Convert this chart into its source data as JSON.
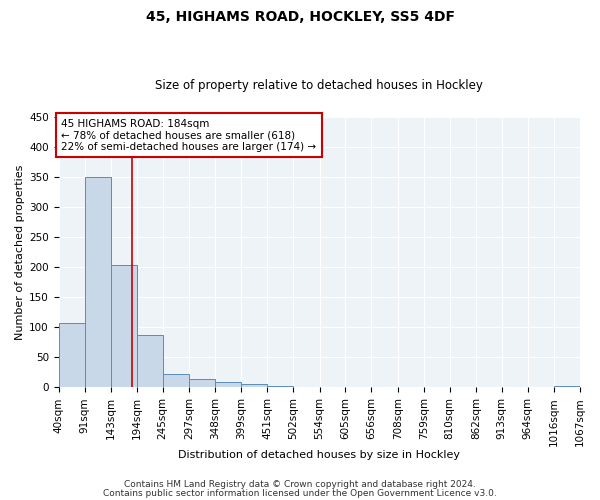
{
  "title": "45, HIGHAMS ROAD, HOCKLEY, SS5 4DF",
  "subtitle": "Size of property relative to detached houses in Hockley",
  "xlabel": "Distribution of detached houses by size in Hockley",
  "ylabel": "Number of detached properties",
  "bin_edges": [
    40,
    91,
    143,
    194,
    245,
    297,
    348,
    399,
    451,
    502,
    554,
    605,
    656,
    708,
    759,
    810,
    862,
    913,
    964,
    1016,
    1067
  ],
  "bin_labels": [
    "40sqm",
    "91sqm",
    "143sqm",
    "194sqm",
    "245sqm",
    "297sqm",
    "348sqm",
    "399sqm",
    "451sqm",
    "502sqm",
    "554sqm",
    "605sqm",
    "656sqm",
    "708sqm",
    "759sqm",
    "810sqm",
    "862sqm",
    "913sqm",
    "964sqm",
    "1016sqm",
    "1067sqm"
  ],
  "counts": [
    108,
    350,
    204,
    88,
    22,
    14,
    9,
    5,
    2,
    0,
    0,
    0,
    0,
    0,
    0,
    0,
    0,
    0,
    0,
    3
  ],
  "bar_color": "#c8d8e8",
  "bar_edge_color": "#5b8db8",
  "vline_x": 184,
  "vline_color": "#cc0000",
  "ylim": [
    0,
    450
  ],
  "yticks": [
    0,
    50,
    100,
    150,
    200,
    250,
    300,
    350,
    400,
    450
  ],
  "annotation_box_text": "45 HIGHAMS ROAD: 184sqm\n← 78% of detached houses are smaller (618)\n22% of semi-detached houses are larger (174) →",
  "annotation_box_color": "#cc0000",
  "footer1": "Contains HM Land Registry data © Crown copyright and database right 2024.",
  "footer2": "Contains public sector information licensed under the Open Government Licence v3.0.",
  "bg_color": "#eef3f8",
  "grid_color": "#ffffff",
  "fig_bg_color": "#ffffff",
  "title_fontsize": 10,
  "subtitle_fontsize": 8.5,
  "xlabel_fontsize": 8,
  "ylabel_fontsize": 8,
  "tick_fontsize": 7.5,
  "annotation_fontsize": 7.5,
  "footer_fontsize": 6.5
}
